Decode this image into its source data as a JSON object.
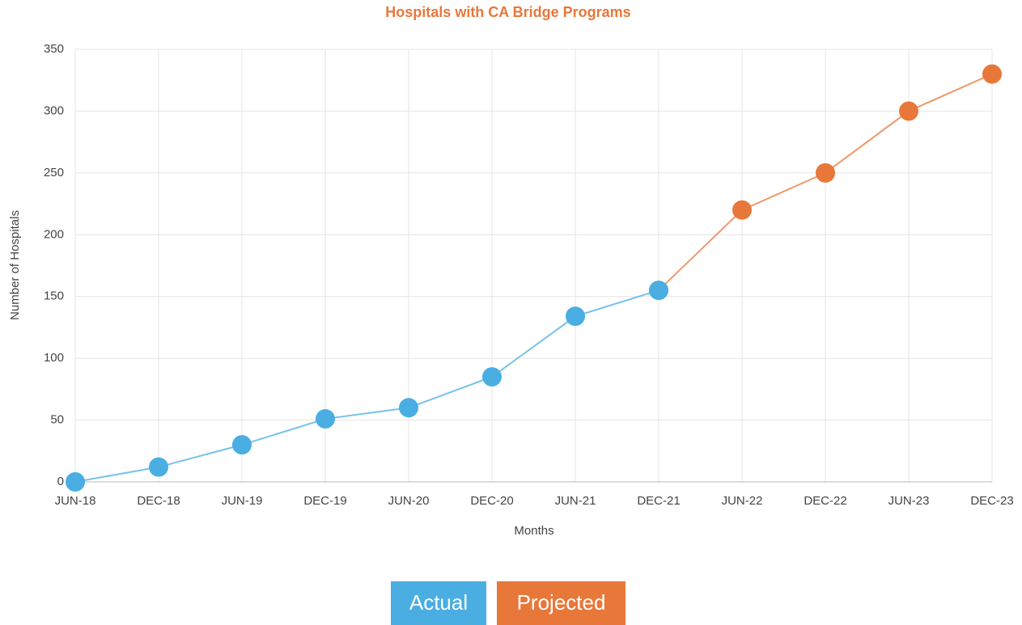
{
  "chart_data": {
    "type": "line",
    "title": "Hospitals with CA Bridge Programs",
    "x_label": "Months",
    "y_label": "Number of Hospitals",
    "categories": [
      "JUN-18",
      "DEC-18",
      "JUN-19",
      "DEC-19",
      "JUN-20",
      "DEC-20",
      "JUN-21",
      "DEC-21",
      "JUN-22",
      "DEC-22",
      "JUN-23",
      "DEC-23"
    ],
    "series": [
      {
        "name": "Actual",
        "color": "#4aaee3",
        "values": [
          0,
          12,
          30,
          51,
          60,
          85,
          134,
          155,
          null,
          null,
          null,
          null
        ]
      },
      {
        "name": "Projected",
        "color": "#e8773a",
        "values": [
          null,
          null,
          null,
          null,
          null,
          null,
          null,
          155,
          220,
          250,
          300,
          330
        ]
      }
    ],
    "ylim": [
      0,
      350
    ],
    "yticks": [
      0,
      50,
      100,
      150,
      200,
      250,
      300,
      350
    ],
    "grid": true,
    "legend": "bottom"
  }
}
